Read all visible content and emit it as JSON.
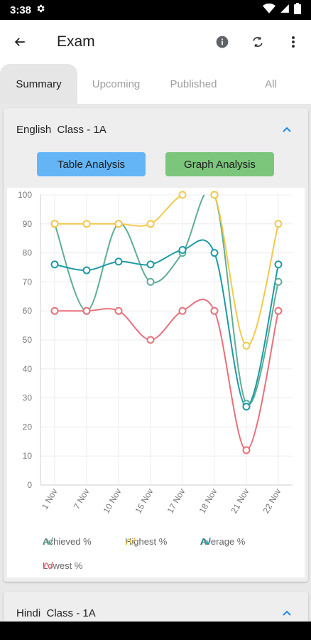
{
  "status": {
    "time": "3:38",
    "icons": [
      "gear-icon",
      "wifi-icon",
      "signal-icon",
      "battery-icon"
    ]
  },
  "app": {
    "title": "Exam",
    "icons": [
      "back-arrow-icon",
      "info-icon",
      "refresh-icon",
      "more-vert-icon"
    ]
  },
  "tabs": [
    {
      "label": "Summary",
      "active": true
    },
    {
      "label": "Upcoming",
      "active": false
    },
    {
      "label": "Published",
      "active": false
    },
    {
      "label": "All",
      "active": false
    }
  ],
  "cards": [
    {
      "title": "English  Class - 1A",
      "expanded": true
    },
    {
      "title": "Hindi  Class - 1A",
      "expanded": true
    }
  ],
  "buttons": {
    "table": "Table Analysis",
    "graph": "Graph Analysis"
  },
  "colors": {
    "achieved": "#5fad95",
    "highest": "#f2c94c",
    "average": "#1d9aa5",
    "lowest": "#e9707d",
    "table_button": "#64b5f6",
    "graph_button": "#7cc67c"
  },
  "chart_data": {
    "type": "line",
    "categories": [
      "1 Nov",
      "7 Nov",
      "10 Nov",
      "15 Nov",
      "17 Nov",
      "18 Nov",
      "21 Nov",
      "22 Nov"
    ],
    "y_ticks": [
      "0",
      "10",
      "20",
      "30",
      "40",
      "50",
      "60",
      "70",
      "80",
      "90",
      "100"
    ],
    "ylim": [
      0,
      100
    ],
    "grid": true,
    "legend_position": "bottom",
    "series": [
      {
        "name": "Achieved %",
        "key": "achieved",
        "values": [
          90,
          60,
          90,
          70,
          80,
          100,
          28,
          70
        ]
      },
      {
        "name": "Highest %",
        "key": "highest",
        "values": [
          90,
          90,
          90,
          90,
          100,
          100,
          48,
          90
        ]
      },
      {
        "name": "Average %",
        "key": "average",
        "values": [
          76,
          74,
          77,
          76,
          81,
          80,
          27,
          76
        ]
      },
      {
        "name": "Lowest %",
        "key": "lowest",
        "values": [
          60,
          60,
          60,
          50,
          60,
          60,
          12,
          60
        ]
      }
    ]
  }
}
